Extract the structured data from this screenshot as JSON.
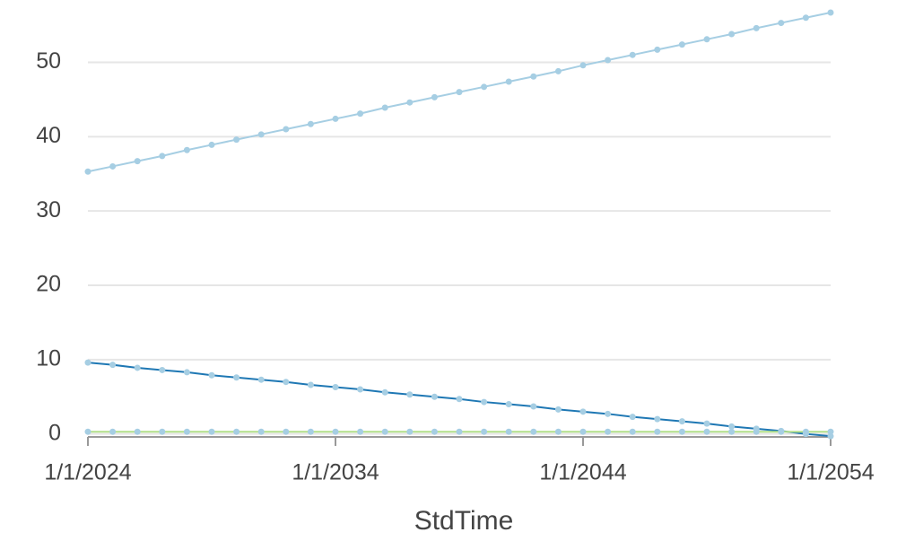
{
  "chart_data": {
    "type": "line",
    "x_label": "StdTime",
    "x": [
      2024,
      2025,
      2026,
      2027,
      2028,
      2029,
      2030,
      2031,
      2032,
      2033,
      2034,
      2035,
      2036,
      2037,
      2038,
      2039,
      2040,
      2041,
      2042,
      2043,
      2044,
      2045,
      2046,
      2047,
      2048,
      2049,
      2050,
      2051,
      2052,
      2053,
      2054
    ],
    "xlim": [
      2024,
      2054
    ],
    "xticks": [
      {
        "value": 2024,
        "label": "1/1/2024"
      },
      {
        "value": 2034,
        "label": "1/1/2034"
      },
      {
        "value": 2044,
        "label": "1/1/2044"
      },
      {
        "value": 2054,
        "label": "1/1/2054"
      }
    ],
    "ylim": [
      -0.4,
      57.3
    ],
    "yticks": [
      0,
      10,
      20,
      30,
      40,
      50
    ],
    "grid": true,
    "marker_color": "#a6cee3",
    "series": [
      {
        "color": "#a6cee3",
        "values": [
          35.3,
          36.0,
          36.7,
          37.4,
          38.2,
          38.9,
          39.6,
          40.3,
          41.0,
          41.7,
          42.4,
          43.1,
          43.9,
          44.6,
          45.3,
          46.0,
          46.7,
          47.4,
          48.1,
          48.8,
          49.6,
          50.3,
          51.0,
          51.7,
          52.4,
          53.1,
          53.8,
          54.6,
          55.3,
          56.0,
          56.7
        ]
      },
      {
        "color": "#1f78b4",
        "values": [
          9.6,
          9.3,
          8.9,
          8.6,
          8.3,
          7.9,
          7.6,
          7.3,
          7.0,
          6.6,
          6.3,
          6.0,
          5.6,
          5.3,
          5.0,
          4.7,
          4.3,
          4.0,
          3.7,
          3.3,
          3.0,
          2.7,
          2.3,
          2.0,
          1.7,
          1.4,
          1.0,
          0.7,
          0.4,
          0.0,
          -0.3
        ]
      },
      {
        "color": "#b2df8a",
        "values": [
          0.3,
          0.3,
          0.3,
          0.3,
          0.3,
          0.3,
          0.3,
          0.3,
          0.3,
          0.3,
          0.3,
          0.3,
          0.3,
          0.3,
          0.3,
          0.3,
          0.3,
          0.3,
          0.3,
          0.3,
          0.3,
          0.3,
          0.3,
          0.3,
          0.3,
          0.3,
          0.3,
          0.3,
          0.3,
          0.3,
          0.3
        ]
      }
    ]
  }
}
